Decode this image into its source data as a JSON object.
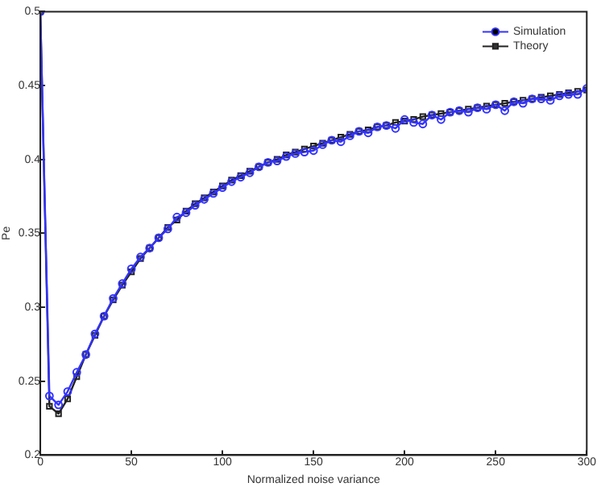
{
  "chart_data": {
    "type": "line",
    "xlabel": "Normalized noise variance",
    "ylabel": "Pe",
    "x": [
      0,
      5,
      10,
      15,
      20,
      25,
      30,
      35,
      40,
      45,
      50,
      55,
      60,
      65,
      70,
      75,
      80,
      85,
      90,
      95,
      100,
      105,
      110,
      115,
      120,
      125,
      130,
      135,
      140,
      145,
      150,
      155,
      160,
      165,
      170,
      175,
      180,
      185,
      190,
      195,
      200,
      205,
      210,
      215,
      220,
      225,
      230,
      235,
      240,
      245,
      250,
      255,
      260,
      265,
      270,
      275,
      280,
      285,
      290,
      295,
      300
    ],
    "series": [
      {
        "name": "Simulation",
        "color": "#3333ff",
        "marker": "circle",
        "values": [
          0.5,
          0.24,
          0.234,
          0.243,
          0.256,
          0.268,
          0.282,
          0.294,
          0.306,
          0.316,
          0.326,
          0.334,
          0.34,
          0.347,
          0.353,
          0.361,
          0.364,
          0.369,
          0.373,
          0.377,
          0.381,
          0.385,
          0.388,
          0.391,
          0.395,
          0.398,
          0.399,
          0.402,
          0.404,
          0.405,
          0.406,
          0.41,
          0.413,
          0.412,
          0.416,
          0.419,
          0.418,
          0.422,
          0.423,
          0.421,
          0.427,
          0.425,
          0.424,
          0.43,
          0.427,
          0.432,
          0.433,
          0.432,
          0.435,
          0.434,
          0.437,
          0.433,
          0.439,
          0.438,
          0.441,
          0.441,
          0.44,
          0.443,
          0.444,
          0.444,
          0.448
        ]
      },
      {
        "name": "Theory",
        "color": "#222222",
        "marker": "square",
        "values": [
          0.5,
          0.233,
          0.228,
          0.238,
          0.253,
          0.268,
          0.281,
          0.294,
          0.305,
          0.315,
          0.324,
          0.333,
          0.34,
          0.347,
          0.354,
          0.359,
          0.365,
          0.37,
          0.374,
          0.378,
          0.382,
          0.386,
          0.389,
          0.392,
          0.395,
          0.398,
          0.4,
          0.403,
          0.405,
          0.407,
          0.409,
          0.411,
          0.413,
          0.415,
          0.417,
          0.419,
          0.42,
          0.422,
          0.423,
          0.425,
          0.426,
          0.427,
          0.429,
          0.43,
          0.431,
          0.432,
          0.433,
          0.434,
          0.435,
          0.436,
          0.437,
          0.438,
          0.439,
          0.44,
          0.441,
          0.442,
          0.443,
          0.444,
          0.445,
          0.446,
          0.447
        ]
      }
    ],
    "xlim": [
      0,
      300
    ],
    "xticks": [
      0,
      50,
      100,
      150,
      200,
      250,
      300
    ],
    "ylim": [
      0.2,
      0.5
    ],
    "yticks": [
      0.2,
      0.25,
      0.3,
      0.35,
      0.4,
      0.45,
      0.5
    ],
    "grid": false,
    "legend": "top right"
  }
}
